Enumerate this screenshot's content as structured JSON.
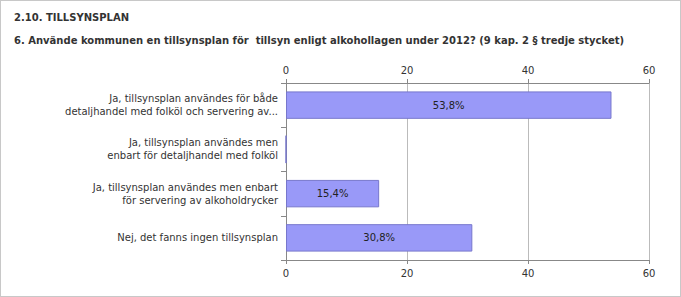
{
  "chart_data": {
    "type": "bar",
    "orientation": "horizontal",
    "title": "2.10. TILLSYNSPLAN",
    "subtitle": "6. Använde kommunen en tillsynsplan för  tillsyn enligt alkohollagen under 2012? (9 kap. 2 § tredje stycket)",
    "categories": [
      "Ja, tillsynsplan användes för både\ndetaljhandel med folköl och servering av...",
      "Ja, tillsynsplan användes men\nenbart för detaljhandel med folköl",
      "Ja, tillsynsplan användes men enbart\nför servering av alkoholdrycker",
      "Nej, det fanns ingen tillsynsplan"
    ],
    "values": [
      53.8,
      0,
      15.4,
      30.8
    ],
    "value_labels": [
      "53,8%",
      null,
      "15,4%",
      "30,8%"
    ],
    "data_labels": true,
    "color": "#9999f8",
    "xlim": [
      0,
      60
    ],
    "xticks": [
      0,
      20,
      40,
      60
    ],
    "grid": true
  }
}
